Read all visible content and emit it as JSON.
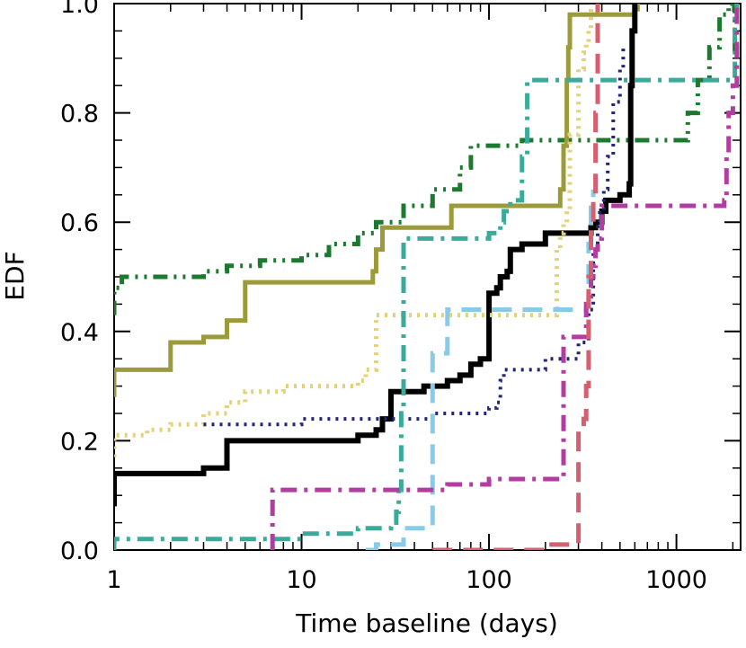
{
  "chart_data": {
    "type": "line",
    "step": true,
    "xscale": "log",
    "xlabel": "Time baseline (days)",
    "ylabel": "EDF",
    "xlim": [
      1,
      2200
    ],
    "ylim": [
      0,
      1
    ],
    "grid": false,
    "legend": "none",
    "xticks": [
      {
        "value": 1,
        "label": "1"
      },
      {
        "value": 10,
        "label": "10"
      },
      {
        "value": 100,
        "label": "100"
      },
      {
        "value": 1000,
        "label": "1000"
      }
    ],
    "yticks": [
      {
        "value": 0.0,
        "label": "0.0"
      },
      {
        "value": 0.2,
        "label": "0.2"
      },
      {
        "value": 0.4,
        "label": "0.4"
      },
      {
        "value": 0.6,
        "label": "0.6"
      },
      {
        "value": 0.8,
        "label": "0.8"
      },
      {
        "value": 1.0,
        "label": "1.0"
      }
    ],
    "series": [
      {
        "color": "#1b7a2e",
        "dash": "dash-dot-dot",
        "width": 5,
        "x": [
          1,
          1,
          1.1,
          3,
          4,
          6,
          10,
          14,
          20,
          25,
          35,
          50,
          70,
          80,
          150,
          250,
          400,
          1100,
          1150,
          1300,
          1500,
          1700,
          1900,
          2000,
          2050,
          2100
        ],
        "y": [
          0.43,
          0.48,
          0.5,
          0.51,
          0.52,
          0.53,
          0.54,
          0.56,
          0.58,
          0.6,
          0.63,
          0.66,
          0.7,
          0.74,
          0.75,
          0.75,
          0.75,
          0.75,
          0.8,
          0.86,
          0.92,
          0.98,
          1.0,
          1.0,
          0.91,
          0.93
        ]
      },
      {
        "color": "#9b9b3c",
        "dash": "solid",
        "width": 5,
        "x": [
          1,
          1,
          2,
          2,
          3,
          4,
          4,
          5,
          5,
          20,
          24,
          25,
          27,
          27,
          60,
          63,
          63,
          230,
          240,
          250,
          260,
          265,
          270,
          270,
          500,
          600,
          620
        ],
        "y": [
          0.28,
          0.33,
          0.33,
          0.38,
          0.39,
          0.39,
          0.42,
          0.42,
          0.49,
          0.49,
          0.51,
          0.55,
          0.56,
          0.59,
          0.59,
          0.6,
          0.63,
          0.63,
          0.66,
          0.74,
          0.86,
          0.92,
          0.96,
          0.98,
          0.98,
          0.99,
          1.0
        ]
      },
      {
        "color": "#000000",
        "dash": "solid",
        "width": 6,
        "x": [
          1,
          1,
          3,
          4,
          4,
          20,
          25,
          27,
          30,
          30,
          45,
          60,
          70,
          80,
          90,
          100,
          100,
          110,
          115,
          125,
          130,
          130,
          150,
          200,
          350,
          370,
          400,
          420,
          500,
          560,
          570,
          580,
          600
        ],
        "y": [
          0.08,
          0.14,
          0.15,
          0.15,
          0.2,
          0.21,
          0.22,
          0.24,
          0.27,
          0.29,
          0.3,
          0.31,
          0.32,
          0.34,
          0.35,
          0.42,
          0.47,
          0.48,
          0.5,
          0.51,
          0.53,
          0.55,
          0.56,
          0.58,
          0.59,
          0.6,
          0.62,
          0.64,
          0.65,
          0.67,
          0.85,
          0.95,
          1.0
        ]
      },
      {
        "color": "#e3d27a",
        "dash": "dotted",
        "width": 5,
        "x": [
          1,
          1,
          1.5,
          2,
          3,
          4,
          5,
          8,
          15,
          20,
          22,
          25,
          25,
          50,
          100,
          200,
          230,
          240,
          250,
          260,
          270,
          300,
          320,
          330,
          340,
          350
        ],
        "y": [
          0.17,
          0.21,
          0.22,
          0.23,
          0.25,
          0.27,
          0.29,
          0.3,
          0.3,
          0.31,
          0.33,
          0.4,
          0.43,
          0.43,
          0.43,
          0.43,
          0.55,
          0.58,
          0.6,
          0.62,
          0.76,
          0.88,
          0.91,
          0.93,
          0.95,
          1.0
        ]
      },
      {
        "color": "#242478",
        "dash": "dotted",
        "width": 4,
        "x": [
          3,
          10,
          30,
          50,
          100,
          110,
          115,
          120,
          200,
          300,
          340,
          360,
          380,
          390,
          410,
          430,
          460,
          500,
          520
        ],
        "y": [
          0.23,
          0.24,
          0.24,
          0.25,
          0.26,
          0.27,
          0.31,
          0.33,
          0.35,
          0.38,
          0.44,
          0.55,
          0.6,
          0.62,
          0.66,
          0.72,
          0.82,
          0.88,
          0.92
        ]
      },
      {
        "color": "#3aaa9a",
        "dash": "dash-dot",
        "width": 5,
        "x": [
          1,
          1,
          5,
          10,
          20,
          30,
          32,
          33,
          34,
          35,
          35,
          100,
          110,
          115,
          120,
          130,
          140,
          150,
          160,
          200,
          300,
          350,
          1000,
          1100,
          2000,
          2050,
          2100
        ],
        "y": [
          0.0,
          0.02,
          0.02,
          0.03,
          0.04,
          0.05,
          0.07,
          0.11,
          0.26,
          0.45,
          0.57,
          0.58,
          0.58,
          0.6,
          0.62,
          0.64,
          0.64,
          0.72,
          0.86,
          0.86,
          0.86,
          0.86,
          0.86,
          0.86,
          0.86,
          0.98,
          1.0
        ]
      },
      {
        "color": "#87cbea",
        "dash": "dashed",
        "width": 5,
        "x": [
          22,
          25,
          35,
          45,
          50,
          50,
          60,
          100,
          150,
          200,
          300,
          330,
          340,
          350,
          360
        ],
        "y": [
          0.0,
          0.01,
          0.04,
          0.04,
          0.18,
          0.36,
          0.44,
          0.44,
          0.44,
          0.44,
          0.44,
          0.45,
          0.56,
          0.64,
          0.66
        ]
      },
      {
        "color": "#b23ca0",
        "dash": "dash-dot",
        "width": 5,
        "x": [
          7,
          7,
          15,
          30,
          60,
          100,
          200,
          250,
          250,
          300,
          330,
          350,
          360,
          370,
          380,
          400,
          500,
          1000,
          1800,
          1850,
          1900,
          2000,
          2100
        ],
        "y": [
          0.0,
          0.11,
          0.11,
          0.11,
          0.12,
          0.13,
          0.13,
          0.14,
          0.39,
          0.39,
          0.45,
          0.5,
          0.52,
          0.55,
          0.57,
          0.63,
          0.63,
          0.63,
          0.64,
          0.72,
          0.8,
          0.85,
          1.0
        ]
      },
      {
        "color": "#d45f6e",
        "dash": "dashed",
        "width": 5,
        "x": [
          50,
          60,
          100,
          200,
          300,
          300,
          320,
          330,
          340,
          350,
          350,
          360,
          370,
          380
        ],
        "y": [
          0.0,
          0.0,
          0.0,
          0.01,
          0.02,
          0.22,
          0.24,
          0.3,
          0.5,
          0.55,
          0.6,
          0.65,
          0.8,
          1.0
        ]
      }
    ]
  }
}
